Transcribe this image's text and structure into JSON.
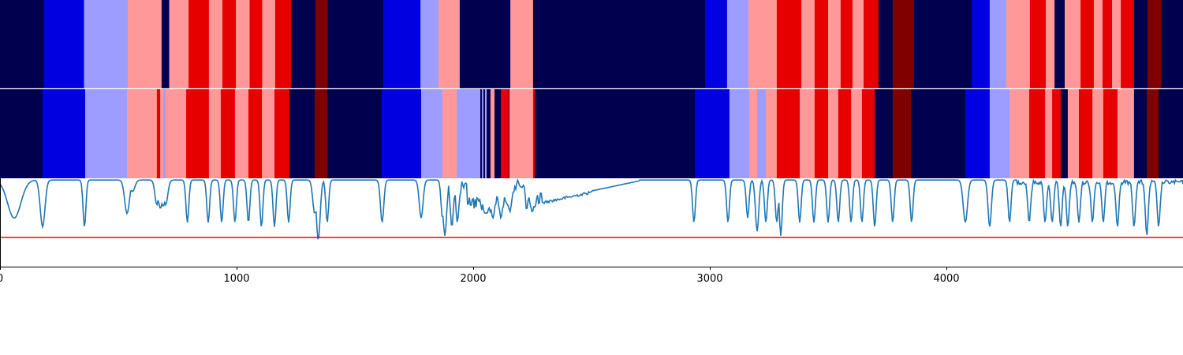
{
  "chart_data": {
    "type": "heatmap",
    "xlim": [
      0,
      5000
    ],
    "x_ticks": [
      0,
      1000,
      2000,
      3000,
      4000
    ],
    "x_tick_labels": [
      "0",
      "1000",
      "2000",
      "3000",
      "4000"
    ],
    "colors": {
      "navy": "#00004f",
      "blue": "#0000e0",
      "lightblue": "#9d9dff",
      "pink": "#ff9999",
      "red": "#e60000",
      "darkred": "#800000",
      "line": "#1f77b4",
      "threshold": "#ff0000",
      "divider": "#ffffff"
    },
    "tracks": [
      {
        "segments": [
          [
            0,
            185,
            "navy"
          ],
          [
            185,
            355,
            "blue"
          ],
          [
            355,
            540,
            "lightblue"
          ],
          [
            540,
            683,
            "pink"
          ],
          [
            683,
            715,
            "navy"
          ],
          [
            715,
            797,
            "pink"
          ],
          [
            797,
            883,
            "red"
          ],
          [
            883,
            940,
            "pink"
          ],
          [
            940,
            997,
            "red"
          ],
          [
            997,
            1055,
            "pink"
          ],
          [
            1055,
            1108,
            "red"
          ],
          [
            1108,
            1163,
            "pink"
          ],
          [
            1163,
            1230,
            "red"
          ],
          [
            1230,
            1333,
            "navy"
          ],
          [
            1333,
            1385,
            "darkred"
          ],
          [
            1385,
            1620,
            "navy"
          ],
          [
            1620,
            1777,
            "blue"
          ],
          [
            1777,
            1853,
            "lightblue"
          ],
          [
            1853,
            1943,
            "pink"
          ],
          [
            1943,
            2157,
            "navy"
          ],
          [
            2157,
            2253,
            "pink"
          ],
          [
            2253,
            2980,
            "navy"
          ],
          [
            2980,
            3073,
            "blue"
          ],
          [
            3073,
            3163,
            "lightblue"
          ],
          [
            3163,
            3283,
            "pink"
          ],
          [
            3283,
            3387,
            "red"
          ],
          [
            3387,
            3443,
            "pink"
          ],
          [
            3443,
            3500,
            "red"
          ],
          [
            3500,
            3553,
            "pink"
          ],
          [
            3553,
            3603,
            "red"
          ],
          [
            3603,
            3650,
            "pink"
          ],
          [
            3650,
            3713,
            "red"
          ],
          [
            3713,
            3773,
            "navy"
          ],
          [
            3773,
            3863,
            "darkred"
          ],
          [
            3863,
            4107,
            "navy"
          ],
          [
            4107,
            4183,
            "blue"
          ],
          [
            4183,
            4253,
            "lightblue"
          ],
          [
            4253,
            4353,
            "pink"
          ],
          [
            4353,
            4420,
            "red"
          ],
          [
            4420,
            4457,
            "pink"
          ],
          [
            4457,
            4500,
            "navy"
          ],
          [
            4500,
            4567,
            "pink"
          ],
          [
            4567,
            4623,
            "red"
          ],
          [
            4623,
            4660,
            "pink"
          ],
          [
            4660,
            4700,
            "red"
          ],
          [
            4700,
            4737,
            "pink"
          ],
          [
            4737,
            4793,
            "red"
          ],
          [
            4793,
            4800,
            "navy"
          ],
          [
            4800,
            4850,
            "navy"
          ],
          [
            4850,
            4907,
            "darkred"
          ],
          [
            4907,
            5000,
            "navy"
          ]
        ]
      },
      {
        "segments": [
          [
            0,
            180,
            "navy"
          ],
          [
            180,
            360,
            "blue"
          ],
          [
            360,
            537,
            "lightblue"
          ],
          [
            537,
            663,
            "pink"
          ],
          [
            663,
            677,
            "red"
          ],
          [
            677,
            690,
            "pink"
          ],
          [
            690,
            700,
            "lightblue"
          ],
          [
            700,
            787,
            "pink"
          ],
          [
            787,
            883,
            "red"
          ],
          [
            883,
            933,
            "pink"
          ],
          [
            933,
            993,
            "red"
          ],
          [
            993,
            1050,
            "pink"
          ],
          [
            1050,
            1107,
            "red"
          ],
          [
            1107,
            1160,
            "pink"
          ],
          [
            1160,
            1223,
            "red"
          ],
          [
            1223,
            1330,
            "navy"
          ],
          [
            1330,
            1383,
            "darkred"
          ],
          [
            1383,
            1613,
            "navy"
          ],
          [
            1613,
            1780,
            "blue"
          ],
          [
            1780,
            1870,
            "lightblue"
          ],
          [
            1870,
            1930,
            "pink"
          ],
          [
            1930,
            2030,
            "lightblue"
          ],
          [
            2030,
            2037,
            "navy"
          ],
          [
            2037,
            2043,
            "lightblue"
          ],
          [
            2043,
            2050,
            "navy"
          ],
          [
            2050,
            2057,
            "lightblue"
          ],
          [
            2057,
            2073,
            "navy"
          ],
          [
            2073,
            2090,
            "pink"
          ],
          [
            2090,
            2117,
            "navy"
          ],
          [
            2117,
            2150,
            "red"
          ],
          [
            2150,
            2153,
            "navy"
          ],
          [
            2153,
            2253,
            "pink"
          ],
          [
            2253,
            2260,
            "red"
          ],
          [
            2260,
            2937,
            "navy"
          ],
          [
            2937,
            3083,
            "blue"
          ],
          [
            3083,
            3167,
            "lightblue"
          ],
          [
            3167,
            3200,
            "pink"
          ],
          [
            3200,
            3237,
            "lightblue"
          ],
          [
            3237,
            3283,
            "pink"
          ],
          [
            3283,
            3380,
            "red"
          ],
          [
            3380,
            3443,
            "pink"
          ],
          [
            3443,
            3500,
            "red"
          ],
          [
            3500,
            3543,
            "pink"
          ],
          [
            3543,
            3597,
            "red"
          ],
          [
            3597,
            3643,
            "pink"
          ],
          [
            3643,
            3697,
            "red"
          ],
          [
            3697,
            3773,
            "navy"
          ],
          [
            3773,
            3850,
            "darkred"
          ],
          [
            3850,
            4080,
            "navy"
          ],
          [
            4080,
            4183,
            "blue"
          ],
          [
            4183,
            4267,
            "lightblue"
          ],
          [
            4267,
            4350,
            "pink"
          ],
          [
            4350,
            4417,
            "red"
          ],
          [
            4417,
            4447,
            "pink"
          ],
          [
            4447,
            4483,
            "red"
          ],
          [
            4483,
            4513,
            "navy"
          ],
          [
            4513,
            4560,
            "pink"
          ],
          [
            4560,
            4617,
            "red"
          ],
          [
            4617,
            4663,
            "pink"
          ],
          [
            4663,
            4723,
            "red"
          ],
          [
            4723,
            4793,
            "pink"
          ],
          [
            4793,
            4847,
            "navy"
          ],
          [
            4847,
            4897,
            "darkred"
          ],
          [
            4897,
            5000,
            "navy"
          ]
        ]
      }
    ],
    "signal": {
      "ylim": [
        0,
        1
      ],
      "threshold": 0.33,
      "baseline": 0.98,
      "dips": [
        [
          60,
          28,
          0.55
        ],
        [
          180,
          10,
          0.45
        ],
        [
          357,
          6,
          0.45
        ],
        [
          537,
          10,
          0.6
        ],
        [
          560,
          10,
          0.85
        ],
        [
          663,
          8,
          0.7
        ],
        [
          678,
          10,
          0.66
        ],
        [
          690,
          8,
          0.68
        ],
        [
          700,
          9,
          0.7
        ],
        [
          792,
          6,
          0.5
        ],
        [
          880,
          6,
          0.5
        ],
        [
          937,
          6,
          0.5
        ],
        [
          993,
          6,
          0.5
        ],
        [
          1050,
          6,
          0.5
        ],
        [
          1105,
          6,
          0.45
        ],
        [
          1160,
          6,
          0.45
        ],
        [
          1220,
          6,
          0.5
        ],
        [
          1330,
          8,
          0.6
        ],
        [
          1345,
          8,
          0.3
        ],
        [
          1383,
          6,
          0.5
        ],
        [
          1615,
          7,
          0.5
        ],
        [
          1780,
          8,
          0.55
        ],
        [
          1870,
          6,
          0.55
        ],
        [
          1880,
          7,
          0.35
        ],
        [
          1910,
          6,
          0.45
        ],
        [
          1933,
          6,
          0.5
        ],
        [
          2050,
          7,
          0.6
        ],
        [
          2058,
          7,
          0.6
        ],
        [
          2073,
          6,
          0.62
        ],
        [
          2083,
          7,
          0.55
        ],
        [
          2117,
          6,
          0.55
        ],
        [
          2155,
          7,
          0.62
        ],
        [
          2250,
          6,
          0.62
        ],
        [
          2933,
          6,
          0.5
        ],
        [
          3077,
          6,
          0.5
        ],
        [
          3160,
          6,
          0.55
        ],
        [
          3200,
          7,
          0.4
        ],
        [
          3237,
          6,
          0.5
        ],
        [
          3283,
          6,
          0.5
        ],
        [
          3300,
          6,
          0.35
        ],
        [
          3380,
          6,
          0.5
        ],
        [
          3440,
          6,
          0.5
        ],
        [
          3500,
          6,
          0.5
        ],
        [
          3543,
          6,
          0.5
        ],
        [
          3597,
          6,
          0.5
        ],
        [
          3643,
          6,
          0.5
        ],
        [
          3697,
          6,
          0.45
        ],
        [
          3773,
          6,
          0.5
        ],
        [
          3853,
          6,
          0.5
        ],
        [
          4080,
          9,
          0.5
        ],
        [
          4183,
          7,
          0.45
        ],
        [
          4267,
          6,
          0.5
        ],
        [
          4350,
          6,
          0.5
        ],
        [
          4417,
          6,
          0.5
        ],
        [
          4447,
          6,
          0.5
        ],
        [
          4483,
          6,
          0.45
        ],
        [
          4513,
          6,
          0.45
        ],
        [
          4560,
          6,
          0.5
        ],
        [
          4617,
          6,
          0.5
        ],
        [
          4663,
          6,
          0.5
        ],
        [
          4723,
          6,
          0.45
        ],
        [
          4793,
          6,
          0.45
        ],
        [
          4847,
          6,
          0.35
        ],
        [
          4897,
          6,
          0.45
        ]
      ],
      "noisy_regions": [
        [
          1870,
          2260,
          0.12
        ],
        [
          2260,
          2500,
          0.03
        ]
      ],
      "lowered_regions": [
        [
          1975,
          2055,
          0.72,
          0.82
        ],
        [
          2055,
          2150,
          0.82,
          0.88
        ],
        [
          2220,
          2290,
          0.7,
          0.9
        ]
      ],
      "recovery_ramp": [
        2260,
        2700,
        0.72,
        0.97
      ]
    }
  }
}
